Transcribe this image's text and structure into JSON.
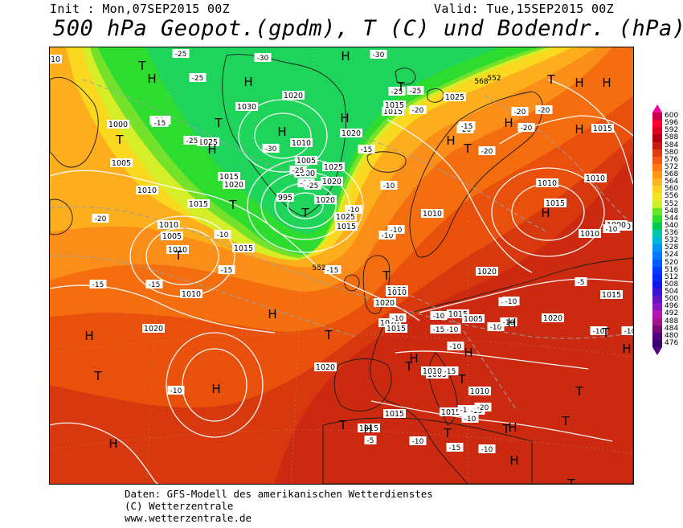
{
  "header": {
    "init": "Init : Mon,07SEP2015 00Z",
    "valid": "Valid: Tue,15SEP2015 00Z",
    "title": "500 hPa Geopot.(gpdm), T (C) und Bodendr. (hPa)"
  },
  "footer": {
    "line1": "Daten: GFS-Modell des amerikanischen Wetterdienstes",
    "line2": "(C) Wetterzentrale",
    "line3": "www.wetterzentrale.de"
  },
  "legend": {
    "values": [
      "600",
      "596",
      "592",
      "588",
      "584",
      "580",
      "576",
      "572",
      "568",
      "564",
      "560",
      "556",
      "552",
      "548",
      "544",
      "540",
      "536",
      "532",
      "528",
      "524",
      "520",
      "516",
      "512",
      "508",
      "504",
      "500",
      "496",
      "492",
      "488",
      "484",
      "480",
      "476"
    ],
    "colors": [
      "#c80050",
      "#ff0030",
      "#e00020",
      "#b40014",
      "#c81c10",
      "#dc3c10",
      "#f05a14",
      "#ff7814",
      "#ff9614",
      "#ffb41e",
      "#ffd21e",
      "#f0e628",
      "#c8f028",
      "#64e628",
      "#28dc28",
      "#00c850",
      "#00c8aa",
      "#00b4dc",
      "#0096f0",
      "#0078ff",
      "#005aff",
      "#003cff",
      "#0028ff",
      "#1414e6",
      "#3c14d2",
      "#6414c8",
      "#8c14be",
      "#b414b4",
      "#a0148c",
      "#780a78",
      "#500080",
      "#3c006e"
    ],
    "colors_note": "band colors"
  },
  "map": {
    "pressure_labels": [
      {
        "t": "1010"
      },
      {
        "t": "1000"
      },
      {
        "t": "1005"
      },
      {
        "t": "1010"
      },
      {
        "t": "1015"
      },
      {
        "t": "1010"
      },
      {
        "t": "1005"
      },
      {
        "t": "1010"
      },
      {
        "t": "1010"
      },
      {
        "t": "1015"
      },
      {
        "t": "1020"
      },
      {
        "t": "1025"
      },
      {
        "t": "1030"
      },
      {
        "t": "1020"
      },
      {
        "t": "1010"
      },
      {
        "t": "1005"
      },
      {
        "t": "1000"
      },
      {
        "t": "995"
      },
      {
        "t": "1020"
      },
      {
        "t": "1015"
      },
      {
        "t": "1020"
      },
      {
        "t": "1015"
      },
      {
        "t": "1015"
      },
      {
        "t": "1025"
      },
      {
        "t": "1015"
      },
      {
        "t": "1025"
      },
      {
        "t": "1020"
      },
      {
        "t": "1020"
      },
      {
        "t": "1025"
      },
      {
        "t": "1015"
      },
      {
        "t": "1010"
      },
      {
        "t": "1020"
      },
      {
        "t": "1015"
      },
      {
        "t": "1005"
      },
      {
        "t": "1005"
      },
      {
        "t": "1010"
      },
      {
        "t": "1015"
      },
      {
        "t": "1015"
      },
      {
        "t": "1010"
      },
      {
        "t": "1015"
      },
      {
        "t": "1020"
      },
      {
        "t": "1025"
      },
      {
        "t": "1020"
      },
      {
        "t": "1020"
      },
      {
        "t": "1015"
      },
      {
        "t": "1010"
      },
      {
        "t": "1020"
      },
      {
        "t": "1015"
      },
      {
        "t": "1010"
      },
      {
        "t": "1020"
      },
      {
        "t": "1010"
      },
      {
        "t": "1015"
      },
      {
        "t": "1000"
      },
      {
        "t": "1010"
      }
    ],
    "temp_labels": [
      {
        "t": "-25"
      },
      {
        "t": "-30"
      },
      {
        "t": "-25"
      },
      {
        "t": "-25"
      },
      {
        "t": "-30"
      },
      {
        "t": "-25"
      },
      {
        "t": "-20"
      },
      {
        "t": "-15"
      },
      {
        "t": "-25"
      },
      {
        "t": "-30"
      },
      {
        "t": "-25"
      },
      {
        "t": "-25"
      },
      {
        "t": "-30"
      },
      {
        "t": "-25"
      },
      {
        "t": "-20"
      },
      {
        "t": "-20"
      },
      {
        "t": "-20"
      },
      {
        "t": "-20"
      },
      {
        "t": "-20"
      },
      {
        "t": "-20"
      },
      {
        "t": "-15"
      },
      {
        "t": "-15"
      },
      {
        "t": "-10"
      },
      {
        "t": "-15"
      },
      {
        "t": "-10"
      },
      {
        "t": "-10"
      },
      {
        "t": "-10"
      },
      {
        "t": "-20"
      },
      {
        "t": "-15"
      },
      {
        "t": "-15"
      },
      {
        "t": "-15"
      },
      {
        "t": "-10"
      },
      {
        "t": "-10"
      },
      {
        "t": "-15"
      },
      {
        "t": "-10"
      },
      {
        "t": "-10"
      },
      {
        "t": "-10"
      },
      {
        "t": "-15"
      },
      {
        "t": "-10"
      },
      {
        "t": "-10"
      },
      {
        "t": "-10"
      },
      {
        "t": "-5"
      },
      {
        "t": "-10"
      },
      {
        "t": "-10"
      },
      {
        "t": "-10"
      },
      {
        "t": "-5"
      },
      {
        "t": "-10"
      },
      {
        "t": "-15"
      },
      {
        "t": "-10"
      },
      {
        "t": "-10"
      },
      {
        "t": "-10"
      },
      {
        "t": "-10"
      },
      {
        "t": "-10"
      },
      {
        "t": "-15"
      },
      {
        "t": "-20"
      }
    ],
    "geopot_labels": [
      {
        "t": "552"
      },
      {
        "t": "552"
      },
      {
        "t": "568"
      }
    ],
    "centers": [
      {
        "t": "T"
      },
      {
        "t": "H"
      },
      {
        "t": "T"
      },
      {
        "t": "H"
      },
      {
        "t": "H"
      },
      {
        "t": "T"
      },
      {
        "t": "H"
      },
      {
        "t": "T"
      },
      {
        "t": "T"
      },
      {
        "t": "T"
      },
      {
        "t": "H"
      },
      {
        "t": "T"
      },
      {
        "t": "H"
      },
      {
        "t": "T"
      },
      {
        "t": "H"
      },
      {
        "t": "H"
      },
      {
        "t": "H"
      },
      {
        "t": "H"
      },
      {
        "t": "T"
      },
      {
        "t": "H"
      },
      {
        "t": "H"
      },
      {
        "t": "T"
      },
      {
        "t": "H"
      },
      {
        "t": "H"
      },
      {
        "t": "T"
      },
      {
        "t": "H"
      },
      {
        "t": "H"
      },
      {
        "t": "T"
      },
      {
        "t": "H"
      },
      {
        "t": "T"
      },
      {
        "t": "H"
      },
      {
        "t": "H"
      },
      {
        "t": "T"
      },
      {
        "t": "H"
      },
      {
        "t": "T"
      },
      {
        "t": "T"
      },
      {
        "t": "T"
      },
      {
        "t": "H"
      },
      {
        "t": "T"
      },
      {
        "t": "H"
      },
      {
        "t": "T"
      },
      {
        "t": "T"
      },
      {
        "t": "H"
      },
      {
        "t": "T"
      }
    ]
  }
}
